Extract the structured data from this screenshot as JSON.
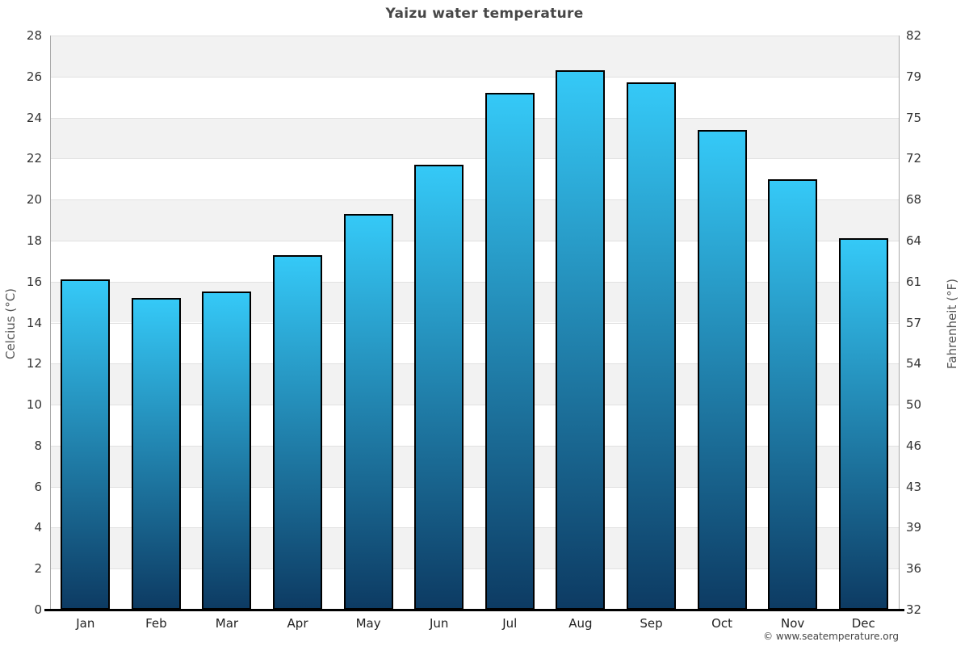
{
  "title": "Yaizu water temperature",
  "footer": {
    "copyright": "© www.seatemperature.org"
  },
  "chart_data": {
    "type": "bar",
    "title": "Yaizu water temperature",
    "categories": [
      "Jan",
      "Feb",
      "Mar",
      "Apr",
      "May",
      "Jun",
      "Jul",
      "Aug",
      "Sep",
      "Oct",
      "Nov",
      "Dec"
    ],
    "values": [
      16.1,
      15.2,
      15.5,
      17.3,
      19.3,
      21.7,
      25.2,
      26.3,
      25.7,
      23.4,
      21.0,
      18.1
    ],
    "series_name": "Water temperature",
    "xlabel": "",
    "ylabel_left": "Celcius (°C)",
    "ylabel_right": "Fahrenheit (°F)",
    "ylim": [
      0,
      28
    ],
    "ytick_step": 2,
    "yticks_celsius": [
      0,
      2,
      4,
      6,
      8,
      10,
      12,
      14,
      16,
      18,
      20,
      22,
      24,
      26,
      28
    ],
    "yticks_fahrenheit_labels": [
      "32",
      "36",
      "39",
      "43",
      "46",
      "50",
      "54",
      "57",
      "61",
      "64",
      "68",
      "72",
      "75",
      "79",
      "82"
    ],
    "grid": "horizontal-bands",
    "legend": "none",
    "colors": {
      "bar_top": "#35c9f7",
      "bar_bottom": "#0d3b63",
      "bar_border": "#000000",
      "band_alt": "#f2f2f2",
      "band_main": "#ffffff",
      "gridline": "#e1e1e1",
      "axis_line": "#a8a8a8",
      "bottom_axis": "#000000",
      "title_color": "#474747"
    }
  }
}
